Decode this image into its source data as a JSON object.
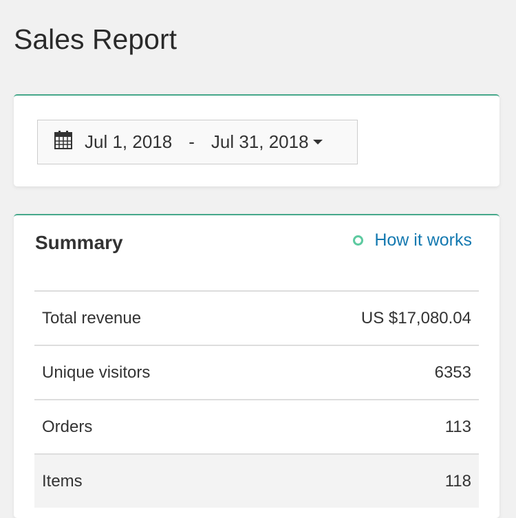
{
  "page_title": "Sales Report",
  "date_range": {
    "start": "Jul 1, 2018",
    "separator": "-",
    "end": "Jul 31, 2018"
  },
  "summary": {
    "title": "Summary",
    "help_link": "How it works",
    "rows": [
      {
        "label": "Total revenue",
        "value": "US $17,080.04"
      },
      {
        "label": "Unique visitors",
        "value": "6353"
      },
      {
        "label": "Orders",
        "value": "113"
      },
      {
        "label": "Items",
        "value": "118"
      }
    ]
  },
  "colors": {
    "accent": "#45a88a",
    "link": "#1479b0"
  }
}
